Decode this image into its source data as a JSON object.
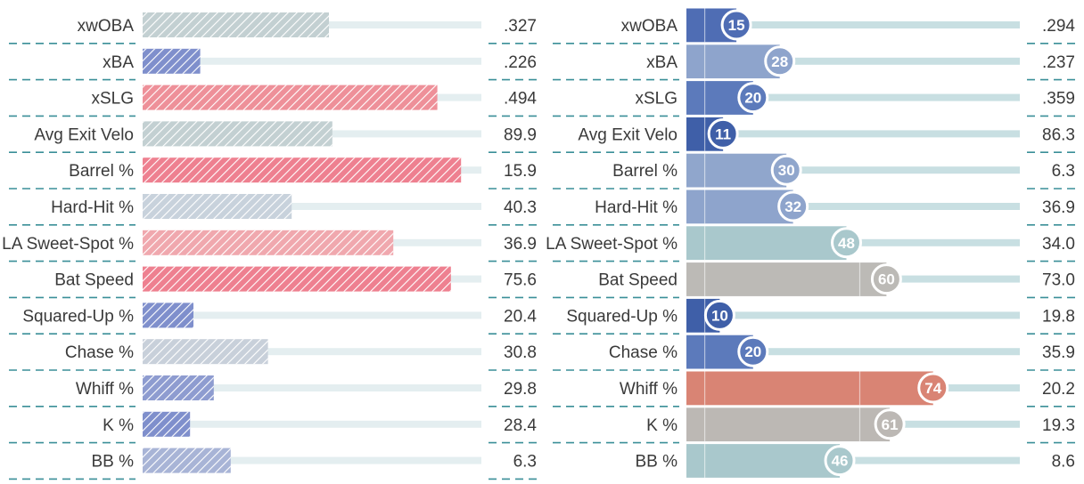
{
  "chart_data": [
    {
      "type": "bar",
      "categories": [
        "xwOBA",
        "xBA",
        "xSLG",
        "Avg Exit Velo",
        "Barrel %",
        "Hard-Hit %",
        "LA Sweet-Spot %",
        "Bat Speed",
        "Squared-Up %",
        "Chase %",
        "Whiff %",
        "K %",
        "BB %"
      ],
      "values": [
        ".327",
        ".226",
        ".494",
        "89.9",
        "15.9",
        "40.3",
        "36.9",
        "75.6",
        "20.4",
        "30.8",
        "29.8",
        "28.4",
        "6.3"
      ],
      "percentiles": [
        55,
        17,
        87,
        56,
        94,
        44,
        74,
        91,
        15,
        37,
        21,
        14,
        26
      ],
      "bar_colors": [
        "#c3d0d2",
        "#7f8fcc",
        "#ee9099",
        "#c3d0d2",
        "#ee8090",
        "#c8d2dc",
        "#f0a8ae",
        "#ee8090",
        "#7f8fcc",
        "#c8d0da",
        "#8e9cd0",
        "#7f8fcc",
        "#a8b4d6"
      ],
      "xlim": [
        0,
        100
      ]
    },
    {
      "type": "bar",
      "categories": [
        "xwOBA",
        "xBA",
        "xSLG",
        "Avg Exit Velo",
        "Barrel %",
        "Hard-Hit %",
        "LA Sweet-Spot %",
        "Bat Speed",
        "Squared-Up %",
        "Chase %",
        "Whiff %",
        "K %",
        "BB %"
      ],
      "values": [
        ".294",
        ".237",
        ".359",
        "86.3",
        "6.3",
        "36.9",
        "34.0",
        "73.0",
        "19.8",
        "35.9",
        "20.2",
        "19.3",
        "8.6"
      ],
      "percentiles": [
        15,
        28,
        20,
        11,
        30,
        32,
        48,
        60,
        10,
        20,
        74,
        61,
        46
      ],
      "bar_colors": [
        "#4f6db4",
        "#8ea4cc",
        "#5c7abb",
        "#3f5fa8",
        "#90a6cc",
        "#8ea4cc",
        "#a9c8cc",
        "#bcbab6",
        "#3f5fa8",
        "#5c7abb",
        "#d98474",
        "#bcb8b4",
        "#a9c8cc"
      ],
      "xlim": [
        0,
        100
      ]
    }
  ]
}
